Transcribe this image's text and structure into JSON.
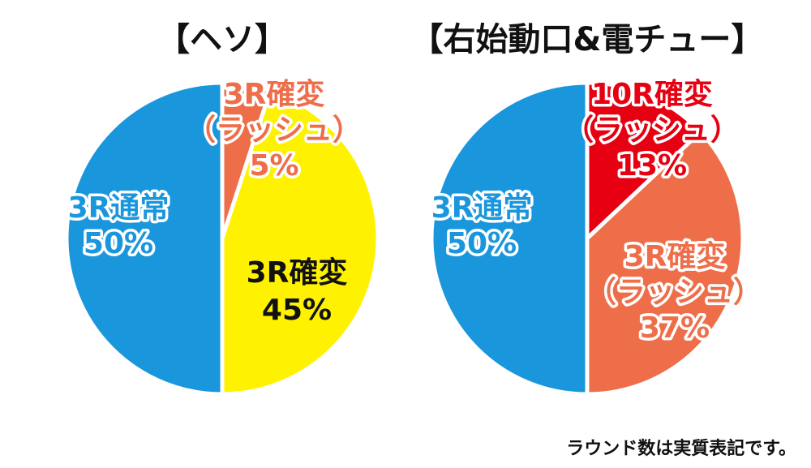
{
  "colors": {
    "blue": "#1a96dc",
    "yellow": "#fff200",
    "orange": "#ee6e4a",
    "red": "#e60012",
    "white_label": "#ffffff",
    "dark_label": "#111111"
  },
  "chart_data": [
    {
      "type": "pie",
      "title": "【ヘソ】",
      "slices": [
        {
          "label": [
            "3R確変",
            "（ラッシュ）",
            "5%"
          ],
          "value": 5,
          "color": "#ee6e4a",
          "label_color": "#ee6e4a"
        },
        {
          "label": [
            "3R確変",
            "45%"
          ],
          "value": 45,
          "color": "#fff200",
          "label_color": "#111111"
        },
        {
          "label": [
            "3R通常",
            "50%"
          ],
          "value": 50,
          "color": "#1a96dc",
          "label_color": "#1a96dc"
        }
      ]
    },
    {
      "type": "pie",
      "title": "【右始動口&電チュー】",
      "slices": [
        {
          "label": [
            "10R確変",
            "（ラッシュ）",
            "13%"
          ],
          "value": 13,
          "color": "#e60012",
          "label_color": "#e60012"
        },
        {
          "label": [
            "3R確変",
            "（ラッシュ）",
            "37%"
          ],
          "value": 37,
          "color": "#ee6e4a",
          "label_color": "#ee6e4a"
        },
        {
          "label": [
            "3R通常",
            "50%"
          ],
          "value": 50,
          "color": "#1a96dc",
          "label_color": "#1a96dc"
        }
      ]
    }
  ],
  "note": "ラウンド数は実質表記です。"
}
